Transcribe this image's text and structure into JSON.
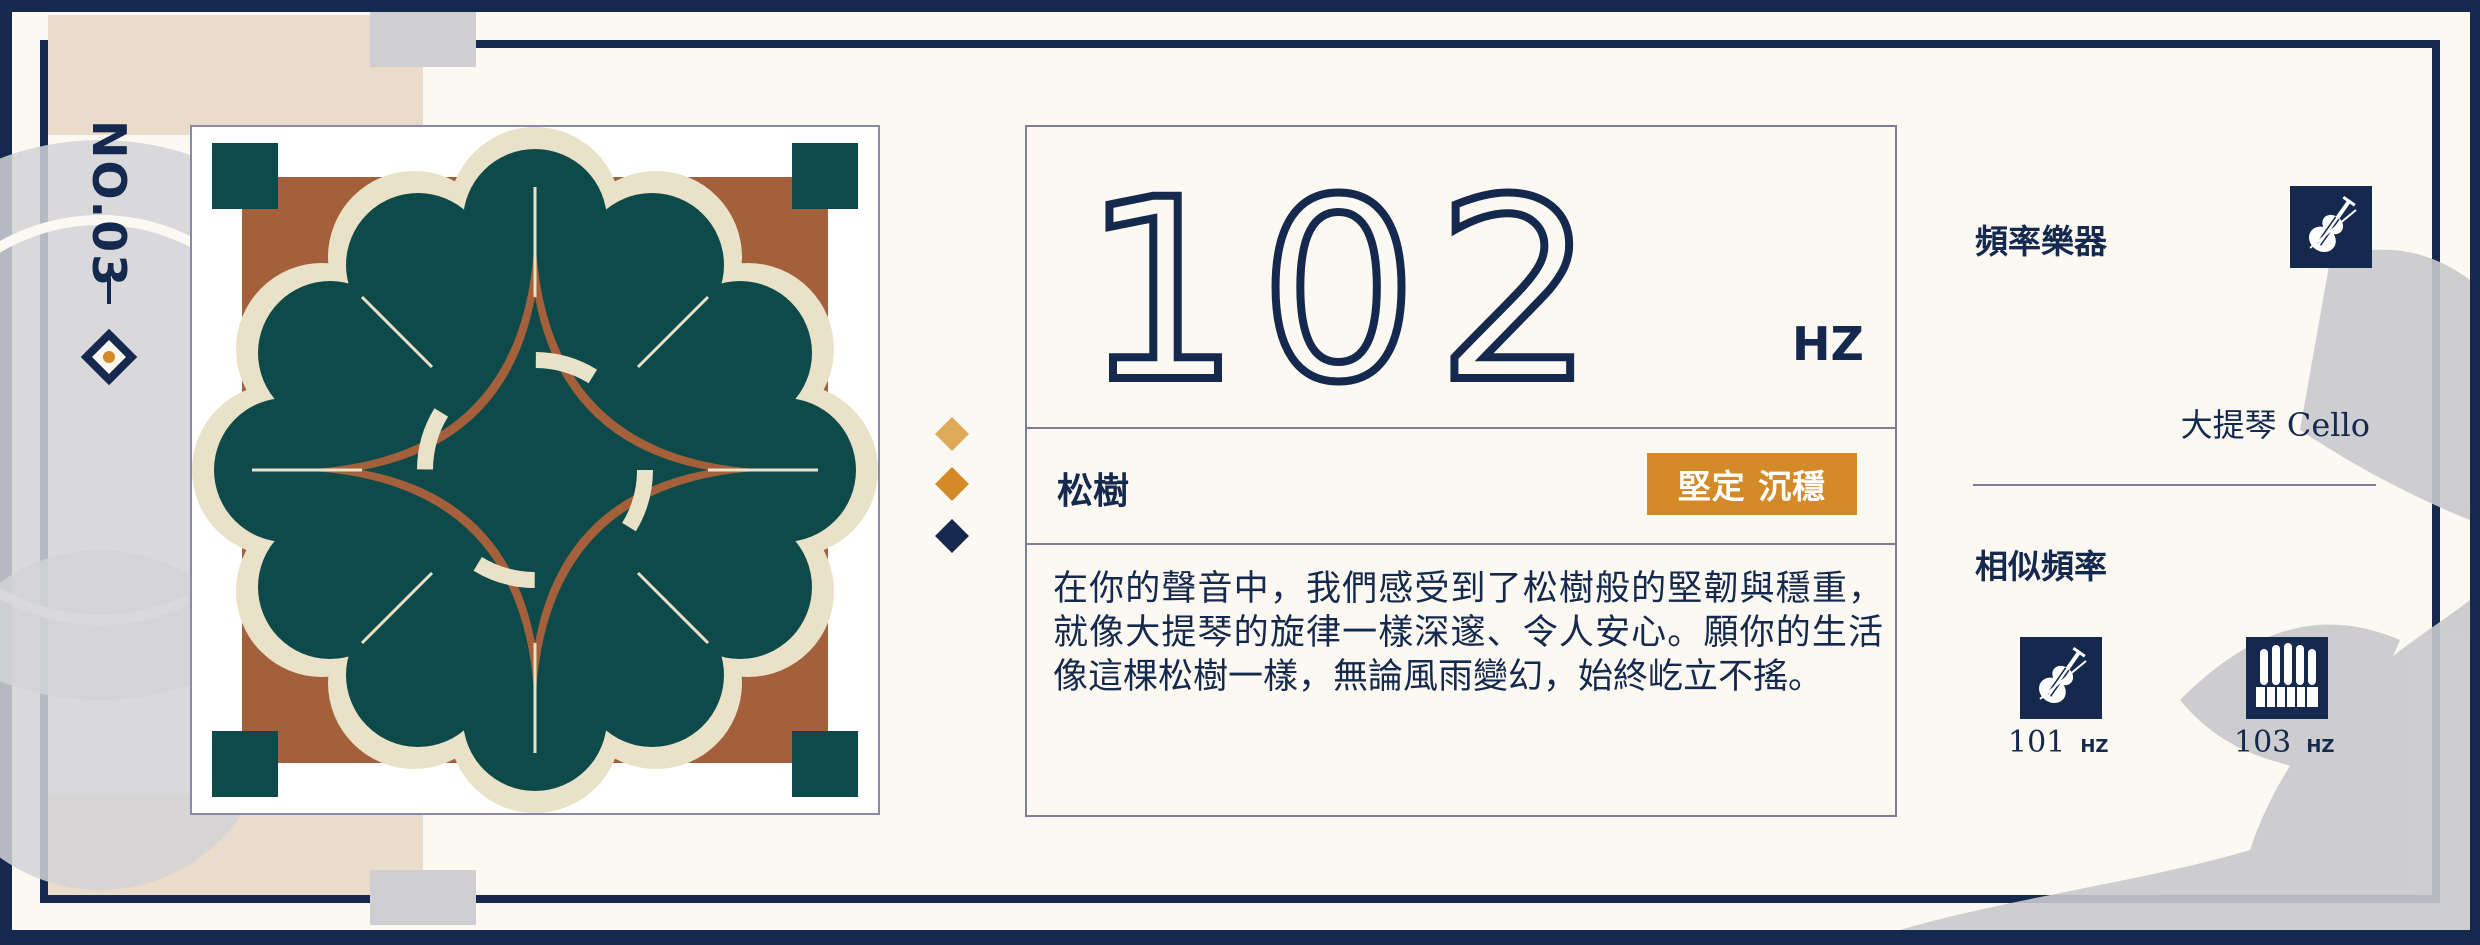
{
  "card": {
    "number_label": "NO.03"
  },
  "frequency": {
    "value": "102",
    "unit": "HZ"
  },
  "tree": {
    "name": "松樹",
    "traits": "堅定 沉穩",
    "description": "在你的聲音中，我們感受到了松樹般的堅韌與穩重，就像大提琴的旋律一樣深邃、令人安心。願你的生活像這棵松樹一樣，無論風雨變幻，始終屹立不搖。"
  },
  "instrument": {
    "section_label": "頻率樂器",
    "icon": "cello-icon",
    "name": "大提琴 Cello"
  },
  "similar": {
    "section_label": "相似頻率",
    "items": [
      {
        "icon": "cello-icon",
        "value": "101",
        "unit": "HZ"
      },
      {
        "icon": "organ-icon",
        "value": "103",
        "unit": "HZ"
      }
    ]
  },
  "colors": {
    "navy": "#15294f",
    "teal": "#0f4a4a",
    "brown": "#a3603a",
    "cream": "#e9e2c8",
    "orange": "#d48a28",
    "gold": "#deaa57",
    "background": "#fbf9f1"
  }
}
